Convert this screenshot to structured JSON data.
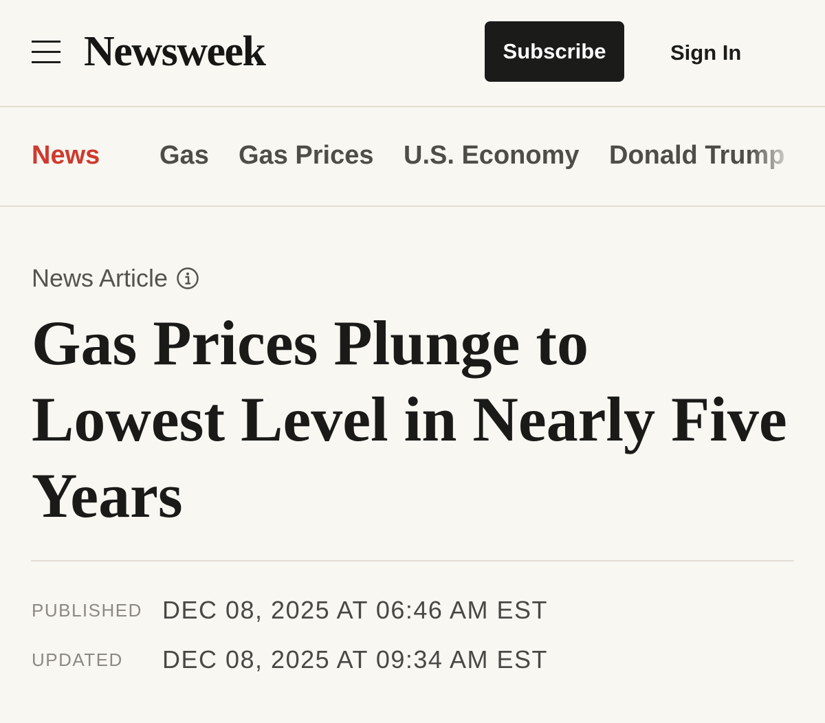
{
  "header": {
    "logo": "Newsweek",
    "subscribe": "Subscribe",
    "sign_in": "Sign In"
  },
  "nav": {
    "items": [
      "News",
      "Gas",
      "Gas Prices",
      "U.S. Economy",
      "Donald Trump"
    ]
  },
  "article": {
    "label": "News Article",
    "title": "Gas Prices Plunge to Lowest Level in Nearly Five Years",
    "published": {
      "label": "PUBLISHED",
      "value": "DEC 08, 2025 AT 06:46 AM EST"
    },
    "updated": {
      "label": "UPDATED",
      "value": "DEC 08, 2025 AT 09:34 AM EST"
    }
  }
}
